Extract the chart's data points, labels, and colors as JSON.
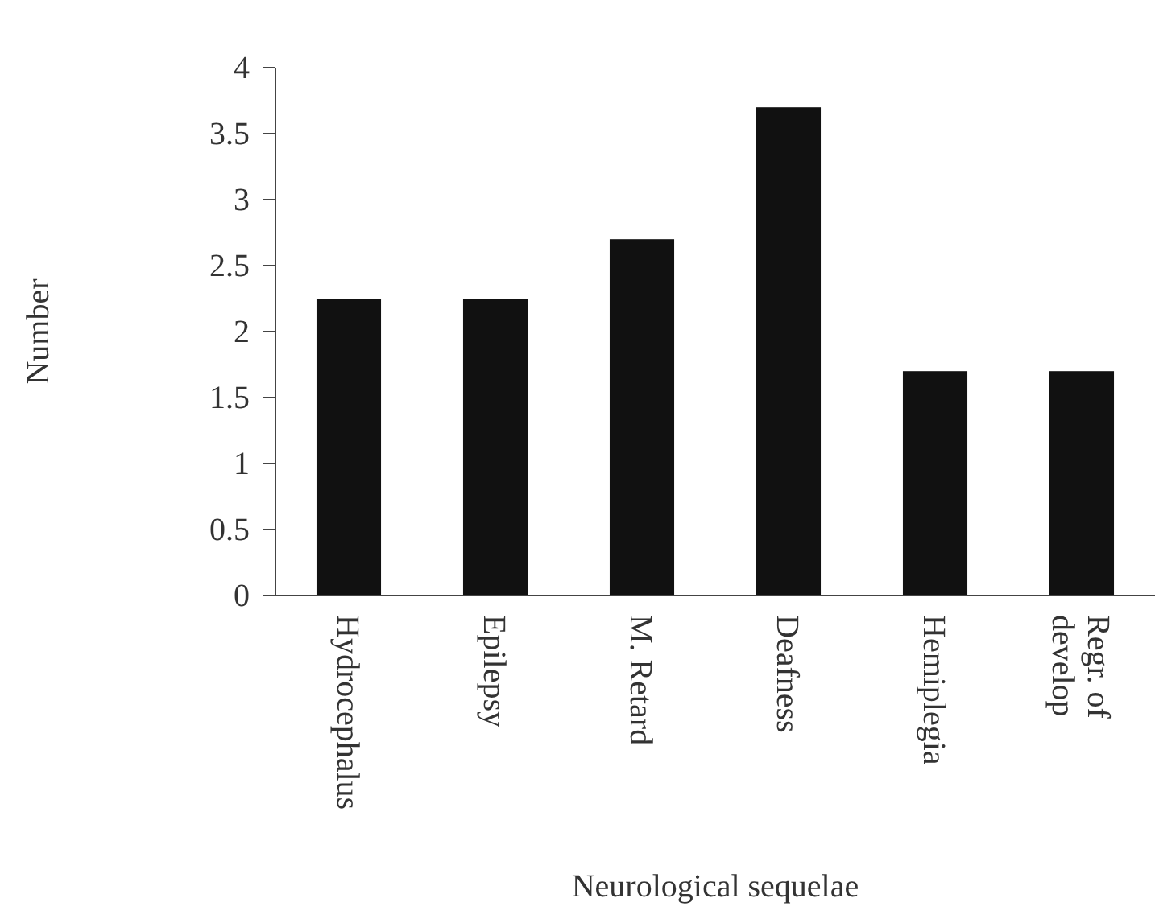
{
  "chart_data": {
    "type": "bar",
    "xlabel": "Neurological sequelae",
    "ylabel": "Number",
    "categories": [
      "Hydrocephalus",
      "Epilepsy",
      "M. Retard",
      "Deafness",
      "Hemiplegia",
      "Regr. of develop"
    ],
    "values": [
      2.25,
      2.25,
      2.7,
      3.7,
      1.7,
      1.7
    ],
    "color": "#111111",
    "ylim": [
      0,
      4
    ],
    "yticks": [
      0,
      0.5,
      1,
      1.5,
      2,
      2.5,
      3,
      3.5,
      4
    ],
    "grid": false
  }
}
